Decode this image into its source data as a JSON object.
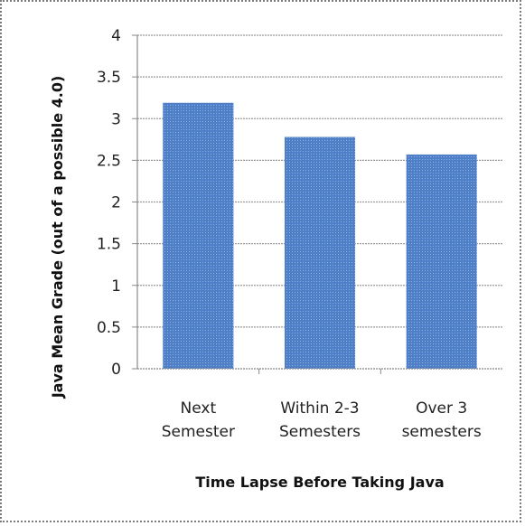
{
  "chart_data": {
    "type": "bar",
    "title": "",
    "xlabel": "Time Lapse Before Taking Java",
    "ylabel": "Java Mean Grade (out of a possible 4.0)",
    "categories": [
      [
        "Next",
        "Semester"
      ],
      [
        "Within 2-3",
        "Semesters"
      ],
      [
        "Over 3",
        "semesters"
      ]
    ],
    "values": [
      3.19,
      2.78,
      2.57
    ],
    "ylim": [
      0,
      4
    ],
    "yticks": [
      "0",
      "0.5",
      "1",
      "1.5",
      "2",
      "2.5",
      "3",
      "3.5",
      "4"
    ],
    "grid": true,
    "legend": "none",
    "bar_color": "#4f7fc6",
    "bar_pattern_color": "#8fb0e2",
    "grid_color": "#9a9a9a"
  }
}
